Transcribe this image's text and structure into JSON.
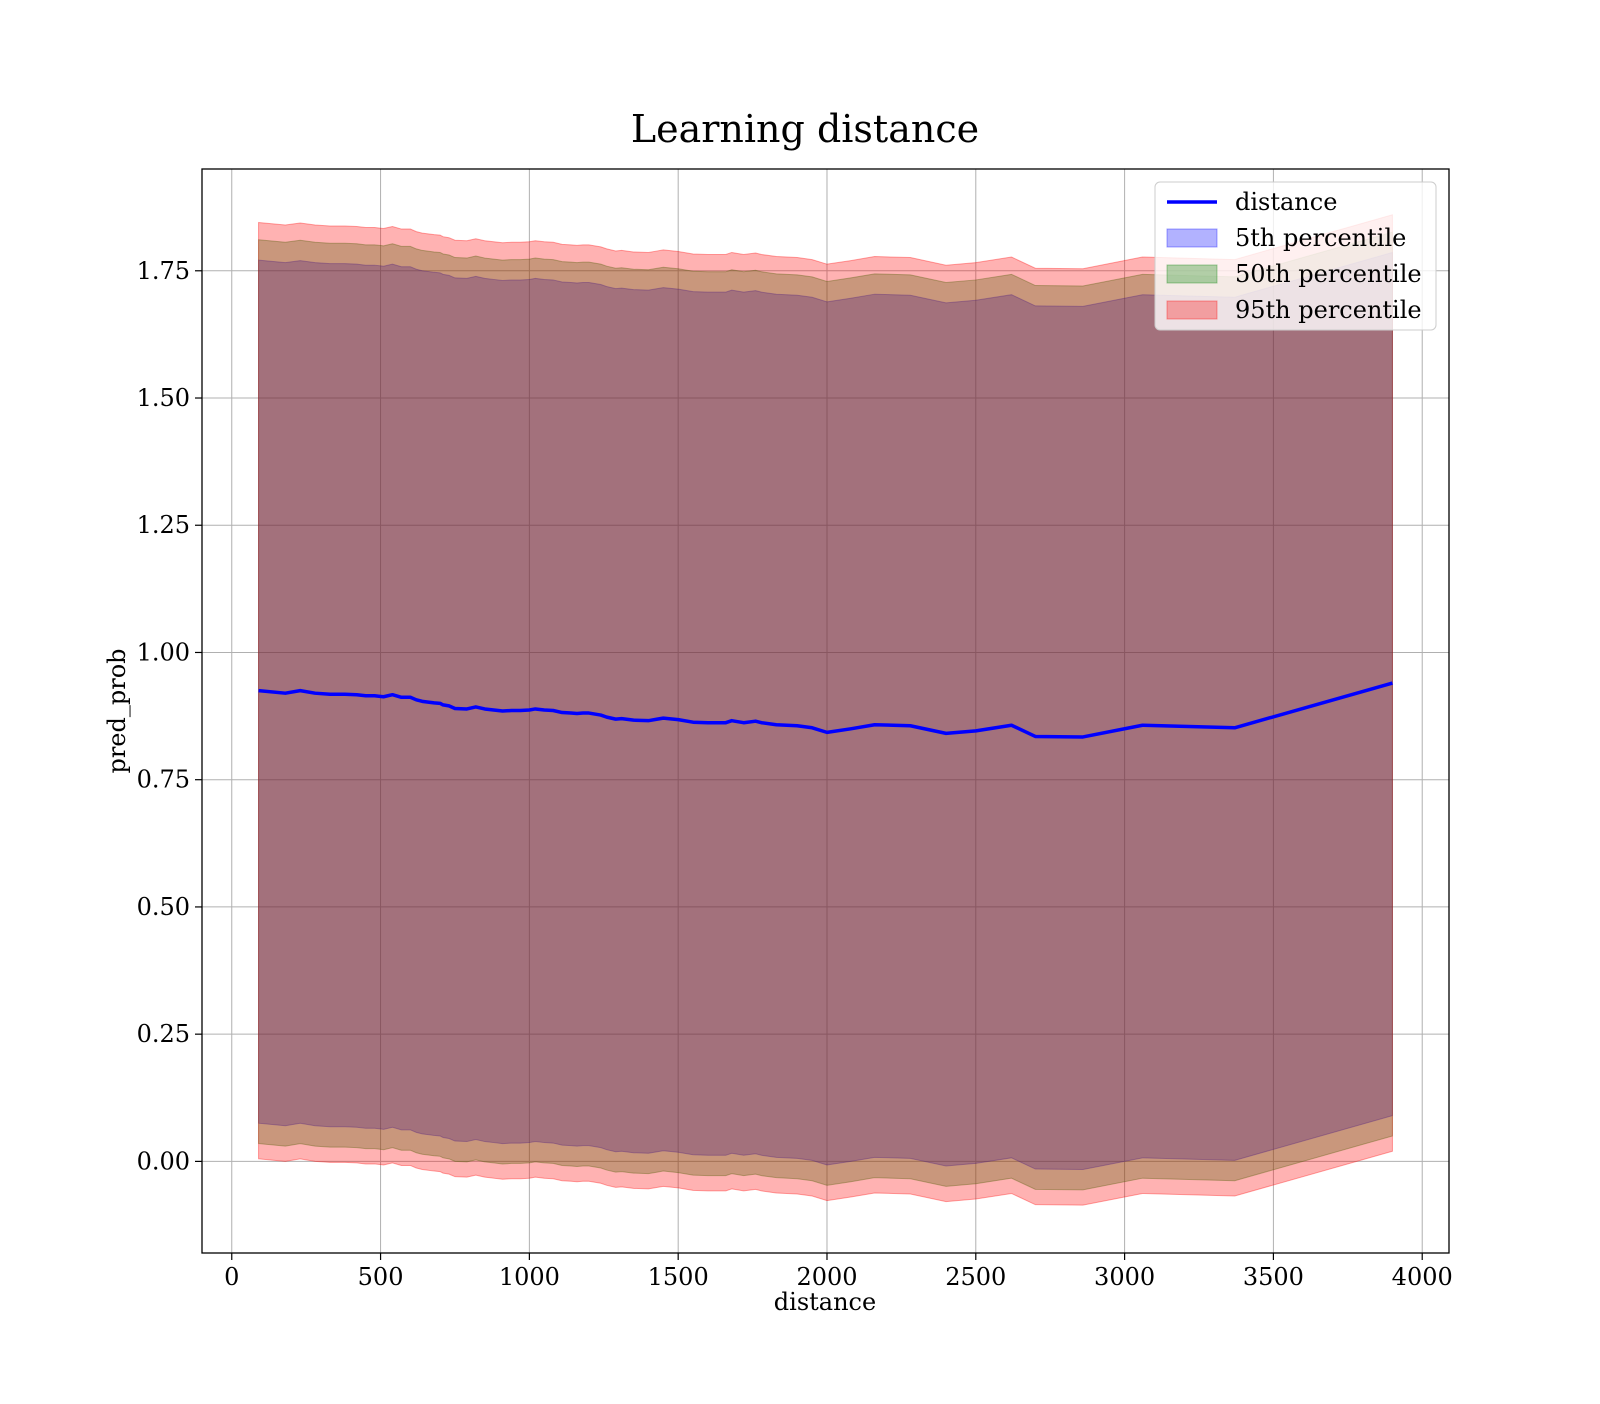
{
  "chart_data": {
    "type": "area",
    "title": "Learning distance",
    "xlabel": "distance",
    "ylabel": "pred_prob",
    "xlim": [
      -100,
      4090
    ],
    "ylim": [
      -0.18,
      1.95
    ],
    "xticks": [
      0,
      500,
      1000,
      1500,
      2000,
      2500,
      3000,
      3500,
      4000
    ],
    "xtick_labels": [
      "0",
      "500",
      "1000",
      "1500",
      "2000",
      "2500",
      "3000",
      "3500",
      "4000"
    ],
    "yticks": [
      0.0,
      0.25,
      0.5,
      0.75,
      1.0,
      1.25,
      1.5,
      1.75
    ],
    "ytick_labels": [
      "0.00",
      "0.25",
      "0.50",
      "0.75",
      "1.00",
      "1.25",
      "1.50",
      "1.75"
    ],
    "grid": true,
    "legend_position": "top-right",
    "x": [
      90,
      180,
      230,
      280,
      330,
      380,
      420,
      450,
      480,
      510,
      540,
      570,
      600,
      620,
      640,
      680,
      700,
      710,
      730,
      750,
      790,
      820,
      850,
      880,
      910,
      940,
      970,
      1000,
      1020,
      1050,
      1080,
      1110,
      1140,
      1160,
      1180,
      1200,
      1240,
      1260,
      1290,
      1310,
      1350,
      1400,
      1430,
      1450,
      1500,
      1550,
      1600,
      1660,
      1680,
      1720,
      1760,
      1780,
      1830,
      1900,
      1950,
      2000,
      2080,
      2160,
      2280,
      2400,
      2500,
      2620,
      2700,
      2860,
      3060,
      3370,
      3900
    ],
    "series": [
      {
        "name": "distance",
        "kind": "line",
        "color": "#0000ff",
        "values": [
          0.925,
          0.92,
          0.925,
          0.92,
          0.918,
          0.918,
          0.917,
          0.915,
          0.915,
          0.913,
          0.917,
          0.912,
          0.912,
          0.907,
          0.904,
          0.901,
          0.9,
          0.897,
          0.895,
          0.89,
          0.889,
          0.893,
          0.889,
          0.887,
          0.885,
          0.886,
          0.886,
          0.887,
          0.889,
          0.887,
          0.886,
          0.882,
          0.881,
          0.88,
          0.881,
          0.881,
          0.877,
          0.873,
          0.869,
          0.87,
          0.867,
          0.866,
          0.869,
          0.871,
          0.868,
          0.863,
          0.862,
          0.862,
          0.866,
          0.862,
          0.865,
          0.862,
          0.858,
          0.856,
          0.852,
          0.843,
          0.85,
          0.858,
          0.856,
          0.841,
          0.846,
          0.857,
          0.835,
          0.834,
          0.857,
          0.852,
          0.94
        ]
      },
      {
        "name": "5th percentile",
        "kind": "band",
        "color": "#0000ff",
        "opacity": 0.3,
        "upper": [
          1.771,
          1.766,
          1.77,
          1.766,
          1.764,
          1.764,
          1.763,
          1.761,
          1.761,
          1.759,
          1.763,
          1.758,
          1.758,
          1.753,
          1.75,
          1.747,
          1.746,
          1.743,
          1.741,
          1.736,
          1.735,
          1.739,
          1.735,
          1.733,
          1.731,
          1.732,
          1.732,
          1.733,
          1.735,
          1.733,
          1.732,
          1.728,
          1.727,
          1.726,
          1.727,
          1.727,
          1.723,
          1.719,
          1.715,
          1.716,
          1.713,
          1.712,
          1.715,
          1.717,
          1.714,
          1.709,
          1.708,
          1.708,
          1.712,
          1.708,
          1.711,
          1.708,
          1.704,
          1.702,
          1.698,
          1.689,
          1.696,
          1.704,
          1.702,
          1.687,
          1.692,
          1.703,
          1.681,
          1.68,
          1.703,
          1.698,
          1.786
        ],
        "lower": [
          0.075,
          0.07,
          0.075,
          0.07,
          0.068,
          0.068,
          0.067,
          0.065,
          0.065,
          0.063,
          0.067,
          0.062,
          0.062,
          0.057,
          0.054,
          0.051,
          0.05,
          0.047,
          0.045,
          0.04,
          0.039,
          0.043,
          0.039,
          0.037,
          0.035,
          0.036,
          0.036,
          0.037,
          0.039,
          0.037,
          0.036,
          0.032,
          0.031,
          0.03,
          0.031,
          0.031,
          0.027,
          0.023,
          0.019,
          0.02,
          0.017,
          0.016,
          0.019,
          0.021,
          0.018,
          0.013,
          0.012,
          0.012,
          0.016,
          0.012,
          0.015,
          0.012,
          0.008,
          0.006,
          0.002,
          -0.007,
          0.0,
          0.008,
          0.006,
          -0.009,
          -0.004,
          0.007,
          -0.015,
          -0.016,
          0.007,
          0.002,
          0.09
        ]
      },
      {
        "name": "50th percentile",
        "kind": "band",
        "color": "#008000",
        "opacity": 0.3,
        "upper": [
          1.811,
          1.806,
          1.81,
          1.806,
          1.804,
          1.804,
          1.803,
          1.801,
          1.801,
          1.799,
          1.803,
          1.798,
          1.798,
          1.793,
          1.79,
          1.787,
          1.786,
          1.783,
          1.781,
          1.776,
          1.775,
          1.779,
          1.775,
          1.773,
          1.771,
          1.772,
          1.772,
          1.773,
          1.775,
          1.773,
          1.772,
          1.768,
          1.767,
          1.766,
          1.767,
          1.767,
          1.763,
          1.759,
          1.755,
          1.756,
          1.753,
          1.752,
          1.755,
          1.757,
          1.754,
          1.749,
          1.748,
          1.748,
          1.752,
          1.748,
          1.751,
          1.748,
          1.744,
          1.742,
          1.738,
          1.729,
          1.736,
          1.744,
          1.742,
          1.727,
          1.732,
          1.743,
          1.721,
          1.72,
          1.743,
          1.738,
          1.826
        ],
        "lower": [
          0.035,
          0.03,
          0.035,
          0.03,
          0.028,
          0.028,
          0.027,
          0.025,
          0.025,
          0.023,
          0.027,
          0.022,
          0.022,
          0.017,
          0.014,
          0.011,
          0.01,
          0.007,
          0.005,
          0.0,
          -0.001,
          0.003,
          -0.001,
          -0.003,
          -0.005,
          -0.004,
          -0.004,
          -0.003,
          -0.001,
          -0.003,
          -0.004,
          -0.008,
          -0.009,
          -0.01,
          -0.009,
          -0.009,
          -0.013,
          -0.017,
          -0.021,
          -0.02,
          -0.023,
          -0.024,
          -0.021,
          -0.019,
          -0.022,
          -0.027,
          -0.028,
          -0.028,
          -0.024,
          -0.028,
          -0.025,
          -0.028,
          -0.032,
          -0.034,
          -0.038,
          -0.047,
          -0.04,
          -0.032,
          -0.034,
          -0.049,
          -0.044,
          -0.033,
          -0.055,
          -0.056,
          -0.033,
          -0.038,
          0.05
        ]
      },
      {
        "name": "95th percentile",
        "kind": "band",
        "color": "#ff0000",
        "opacity": 0.3,
        "upper": [
          1.845,
          1.84,
          1.844,
          1.84,
          1.838,
          1.838,
          1.837,
          1.835,
          1.835,
          1.833,
          1.837,
          1.832,
          1.832,
          1.827,
          1.824,
          1.821,
          1.82,
          1.817,
          1.815,
          1.81,
          1.809,
          1.813,
          1.809,
          1.807,
          1.805,
          1.806,
          1.806,
          1.807,
          1.809,
          1.807,
          1.806,
          1.802,
          1.801,
          1.8,
          1.801,
          1.801,
          1.797,
          1.793,
          1.789,
          1.79,
          1.787,
          1.786,
          1.789,
          1.791,
          1.788,
          1.783,
          1.782,
          1.782,
          1.786,
          1.782,
          1.785,
          1.782,
          1.778,
          1.776,
          1.772,
          1.763,
          1.77,
          1.778,
          1.776,
          1.761,
          1.766,
          1.777,
          1.755,
          1.754,
          1.777,
          1.772,
          1.86
        ],
        "lower": [
          0.005,
          0.0,
          0.005,
          0.0,
          -0.002,
          -0.002,
          -0.003,
          -0.005,
          -0.005,
          -0.007,
          -0.003,
          -0.008,
          -0.008,
          -0.013,
          -0.016,
          -0.019,
          -0.02,
          -0.023,
          -0.025,
          -0.03,
          -0.031,
          -0.027,
          -0.031,
          -0.033,
          -0.035,
          -0.034,
          -0.034,
          -0.033,
          -0.031,
          -0.033,
          -0.034,
          -0.038,
          -0.039,
          -0.04,
          -0.039,
          -0.039,
          -0.043,
          -0.047,
          -0.051,
          -0.05,
          -0.053,
          -0.054,
          -0.051,
          -0.049,
          -0.052,
          -0.057,
          -0.058,
          -0.058,
          -0.054,
          -0.058,
          -0.055,
          -0.058,
          -0.062,
          -0.064,
          -0.068,
          -0.077,
          -0.07,
          -0.062,
          -0.064,
          -0.079,
          -0.074,
          -0.063,
          -0.085,
          -0.086,
          -0.063,
          -0.068,
          0.02
        ]
      }
    ]
  }
}
